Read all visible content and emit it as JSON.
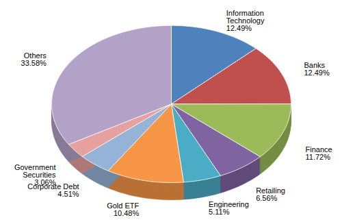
{
  "chart_data": {
    "type": "pie",
    "categories": [
      "Information Technology",
      "Banks",
      "Finance",
      "Retailing",
      "Engineering",
      "Gold ETF",
      "Corporate Debt",
      "Government Securities",
      "Others"
    ],
    "values": [
      12.49,
      12.49,
      11.72,
      6.56,
      5.11,
      10.48,
      4.51,
      3.06,
      33.58
    ],
    "value_labels": [
      "12.49%",
      "12.49%",
      "11.72%",
      "6.56%",
      "5.11%",
      "10.48%",
      "4.51%",
      "3.06%",
      "33.58%"
    ],
    "colors": [
      "#4f81bd",
      "#c0504d",
      "#9bbb59",
      "#8064a2",
      "#4bacc6",
      "#f79646",
      "#95b3d7",
      "#e6a09e",
      "#b3a2c7"
    ],
    "data_labels": true
  }
}
